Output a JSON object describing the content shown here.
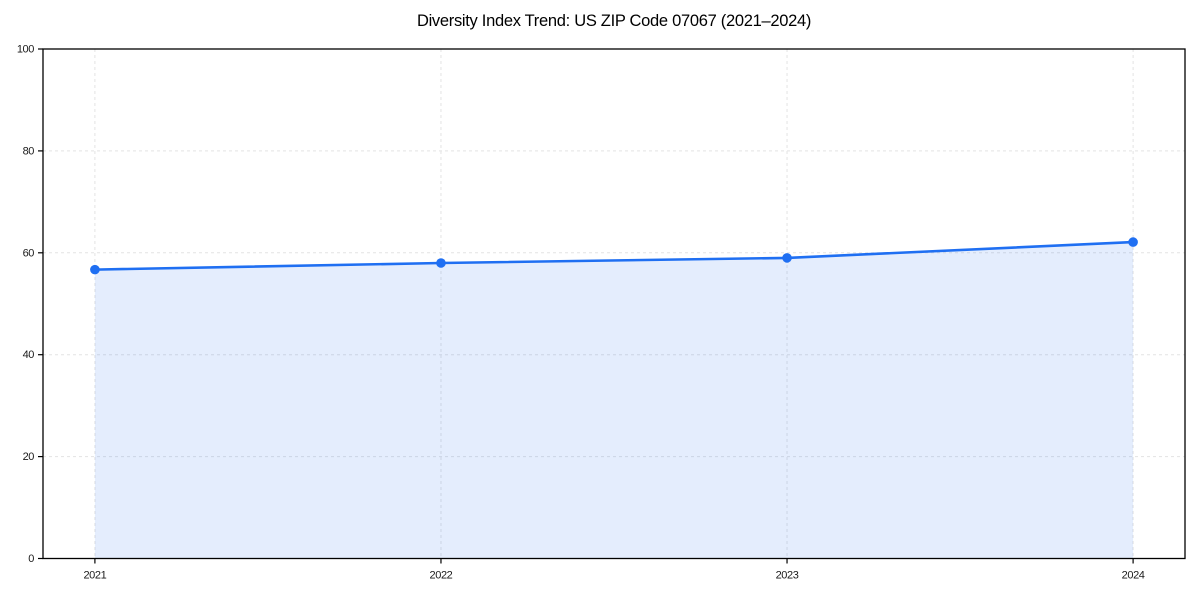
{
  "chart_data": {
    "type": "area",
    "title": "Diversity Index Trend: US ZIP Code 07067 (2021–2024)",
    "xlabel": "",
    "ylabel": "",
    "categories": [
      "2021",
      "2022",
      "2023",
      "2024"
    ],
    "x": [
      2021,
      2022,
      2023,
      2024
    ],
    "series": [
      {
        "name": "Diversity Index",
        "values": [
          56.7,
          58.0,
          59.0,
          62.1
        ]
      }
    ],
    "ylim": [
      0,
      100
    ],
    "yticks": [
      0,
      20,
      40,
      60,
      80,
      100
    ],
    "grid": true,
    "grid_style": "dashed",
    "legend_position": "none",
    "colors": {
      "line": "#1f6ff2",
      "marker": "#1f6ff2",
      "area_fill": "rgba(31,111,242,0.12)",
      "grid": "#e3e3e3",
      "axis": "#000000",
      "tick_label": "#1a1a1a",
      "background": "#ffffff"
    }
  }
}
